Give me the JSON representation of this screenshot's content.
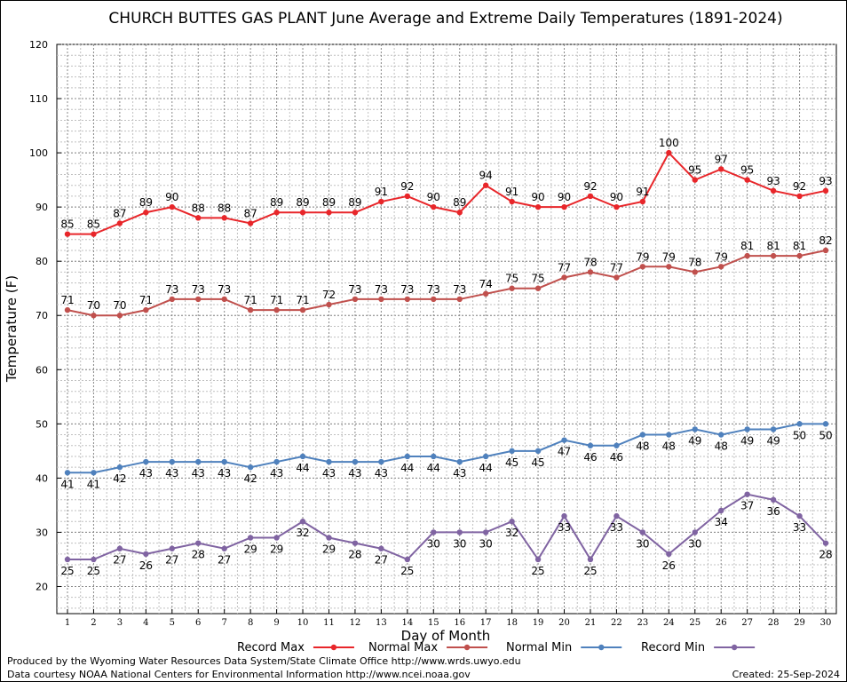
{
  "chart_data": {
    "type": "line",
    "title": "CHURCH BUTTES GAS PLANT June Average and Extreme Daily Temperatures (1891-2024)",
    "xlabel": "Day of Month",
    "ylabel": "Temperature (F)",
    "ylim": [
      15,
      120
    ],
    "yticks": [
      20,
      30,
      40,
      50,
      60,
      70,
      80,
      90,
      100,
      110,
      120
    ],
    "x": [
      1,
      2,
      3,
      4,
      5,
      6,
      7,
      8,
      9,
      10,
      11,
      12,
      13,
      14,
      15,
      16,
      17,
      18,
      19,
      20,
      21,
      22,
      23,
      24,
      25,
      26,
      27,
      28,
      29,
      30
    ],
    "grid": true,
    "legend_position": "bottom",
    "series": [
      {
        "name": "Record Max",
        "color": "#e8262a",
        "label_pos": "above",
        "values": [
          85,
          85,
          87,
          89,
          90,
          88,
          88,
          87,
          89,
          89,
          89,
          89,
          91,
          92,
          90,
          89,
          94,
          91,
          90,
          90,
          92,
          90,
          91,
          100,
          95,
          97,
          95,
          93,
          92,
          93
        ]
      },
      {
        "name": "Normal Max",
        "color": "#c0504d",
        "label_pos": "above",
        "values": [
          71,
          70,
          70,
          71,
          73,
          73,
          73,
          71,
          71,
          71,
          72,
          73,
          73,
          73,
          73,
          73,
          74,
          75,
          75,
          77,
          78,
          77,
          79,
          79,
          78,
          79,
          81,
          81,
          81,
          82
        ]
      },
      {
        "name": "Normal Min",
        "color": "#4f81bd",
        "label_pos": "below",
        "values": [
          41,
          41,
          42,
          43,
          43,
          43,
          43,
          42,
          43,
          44,
          43,
          43,
          43,
          44,
          44,
          43,
          44,
          45,
          45,
          47,
          46,
          46,
          48,
          48,
          49,
          48,
          49,
          49,
          50,
          50
        ]
      },
      {
        "name": "Record Min",
        "color": "#8064a2",
        "label_pos": "below",
        "values": [
          25,
          25,
          27,
          26,
          27,
          28,
          27,
          29,
          29,
          32,
          29,
          28,
          27,
          25,
          30,
          30,
          30,
          32,
          25,
          33,
          25,
          33,
          30,
          26,
          30,
          34,
          37,
          36,
          33,
          28
        ]
      }
    ]
  },
  "footer": {
    "credit_1": "Produced by the Wyoming Water Resources Data System/State Climate Office http://www.wrds.uwyo.edu",
    "credit_2": "Data courtesy NOAA National Centers for Environmental Information http://www.ncei.noaa.gov",
    "created": "Created: 25-Sep-2024"
  }
}
